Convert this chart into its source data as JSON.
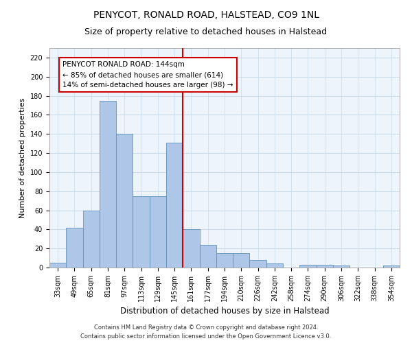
{
  "title": "PENYCOT, RONALD ROAD, HALSTEAD, CO9 1NL",
  "subtitle": "Size of property relative to detached houses in Halstead",
  "xlabel": "Distribution of detached houses by size in Halstead",
  "ylabel": "Number of detached properties",
  "categories": [
    "33sqm",
    "49sqm",
    "65sqm",
    "81sqm",
    "97sqm",
    "113sqm",
    "129sqm",
    "145sqm",
    "161sqm",
    "177sqm",
    "194sqm",
    "210sqm",
    "226sqm",
    "242sqm",
    "258sqm",
    "274sqm",
    "290sqm",
    "306sqm",
    "322sqm",
    "338sqm",
    "354sqm"
  ],
  "values": [
    5,
    42,
    60,
    175,
    140,
    75,
    75,
    131,
    40,
    24,
    15,
    15,
    8,
    4,
    0,
    3,
    3,
    2,
    0,
    0,
    2
  ],
  "bar_color": "#aec6e8",
  "bar_edge_color": "#6090b8",
  "vline_color": "#cc0000",
  "annotation_text": "PENYCOT RONALD ROAD: 144sqm\n← 85% of detached houses are smaller (614)\n14% of semi-detached houses are larger (98) →",
  "annotation_box_color": "#cc0000",
  "ylim": [
    0,
    230
  ],
  "yticks": [
    0,
    20,
    40,
    60,
    80,
    100,
    120,
    140,
    160,
    180,
    200,
    220
  ],
  "grid_color": "#c8d8e8",
  "bg_color": "#eef4fb",
  "footer": "Contains HM Land Registry data © Crown copyright and database right 2024.\nContains public sector information licensed under the Open Government Licence v3.0.",
  "title_fontsize": 10,
  "subtitle_fontsize": 9,
  "xlabel_fontsize": 8.5,
  "ylabel_fontsize": 8,
  "tick_fontsize": 7,
  "annotation_fontsize": 7.5,
  "footer_fontsize": 6
}
